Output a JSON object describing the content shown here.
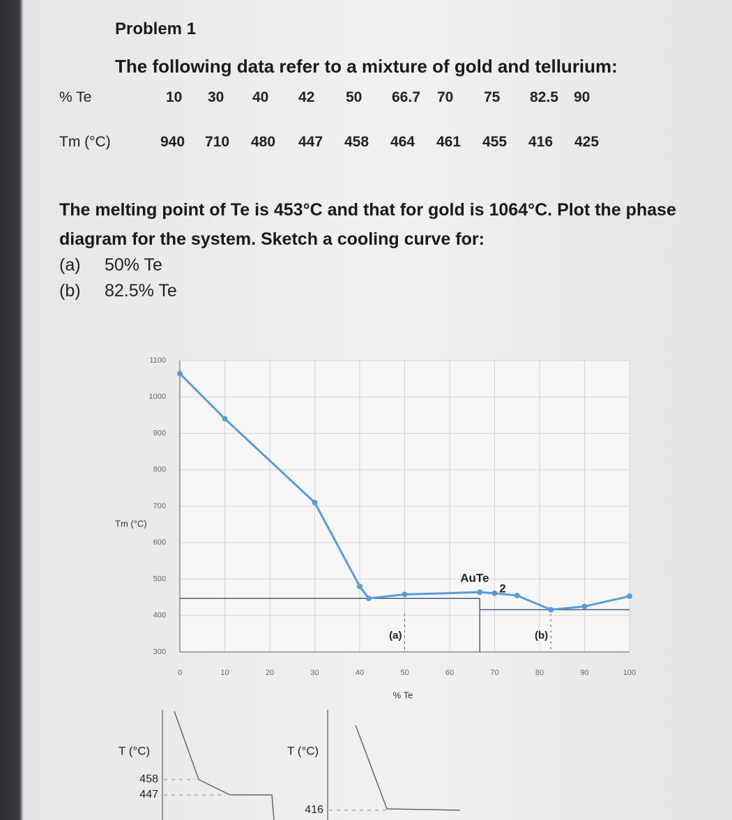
{
  "header": {
    "title": "Problem 1"
  },
  "intro": "The following data refer to a mixture of gold and tellurium:",
  "table": {
    "rows": [
      [
        "% Te",
        "10",
        "30",
        "40",
        "42",
        "50",
        "66.7",
        "70",
        "75",
        "82.5",
        "90"
      ],
      [
        "Tm (°C)",
        "940",
        "710",
        "480",
        "447",
        "458",
        "464",
        "461",
        "455",
        "416",
        "425"
      ]
    ]
  },
  "question": "The melting point of Te is 453°C and that for gold is 1064°C. Plot the phase diagram for the system. Sketch a cooling curve for:",
  "parts": [
    {
      "label": "(a)",
      "text": "50% Te"
    },
    {
      "label": "(b)",
      "text": "82.5% Te"
    }
  ],
  "chart_data": {
    "type": "line",
    "ylabel": "Tm (°C)",
    "xlabel": "% Te",
    "x": [
      0,
      10,
      30,
      40,
      42,
      50,
      66.7,
      70,
      75,
      82.5,
      90,
      100
    ],
    "series": [
      {
        "color": "#5b9bd5",
        "values": [
          1064,
          940,
          710,
          480,
          447,
          458,
          464,
          461,
          455,
          416,
          425,
          453
        ]
      }
    ],
    "xlim": [
      0,
      100
    ],
    "ylim": [
      300,
      1100
    ],
    "xticks": [
      0,
      10,
      20,
      30,
      40,
      50,
      60,
      70,
      80,
      90,
      100
    ],
    "yticks": [
      300,
      400,
      500,
      600,
      700,
      800,
      900,
      1000,
      1100
    ],
    "grid": true,
    "tie_lines": [
      {
        "x": [
          0,
          66.7
        ],
        "y": [
          447,
          447
        ]
      },
      {
        "x": [
          66.7,
          100
        ],
        "y": [
          416,
          416
        ]
      },
      {
        "x": [
          66.7,
          66.7
        ],
        "y": [
          300,
          447
        ]
      }
    ],
    "annotations": {
      "compound": "AuTe",
      "compound_subscript": "2",
      "a": "(a)",
      "b": "(b)"
    }
  },
  "cooling_curves": [
    {
      "ylabel": "T (°C)",
      "ticks": [
        "458",
        "447"
      ]
    },
    {
      "ylabel": "T (°C)",
      "ticks": [
        "416"
      ]
    }
  ]
}
